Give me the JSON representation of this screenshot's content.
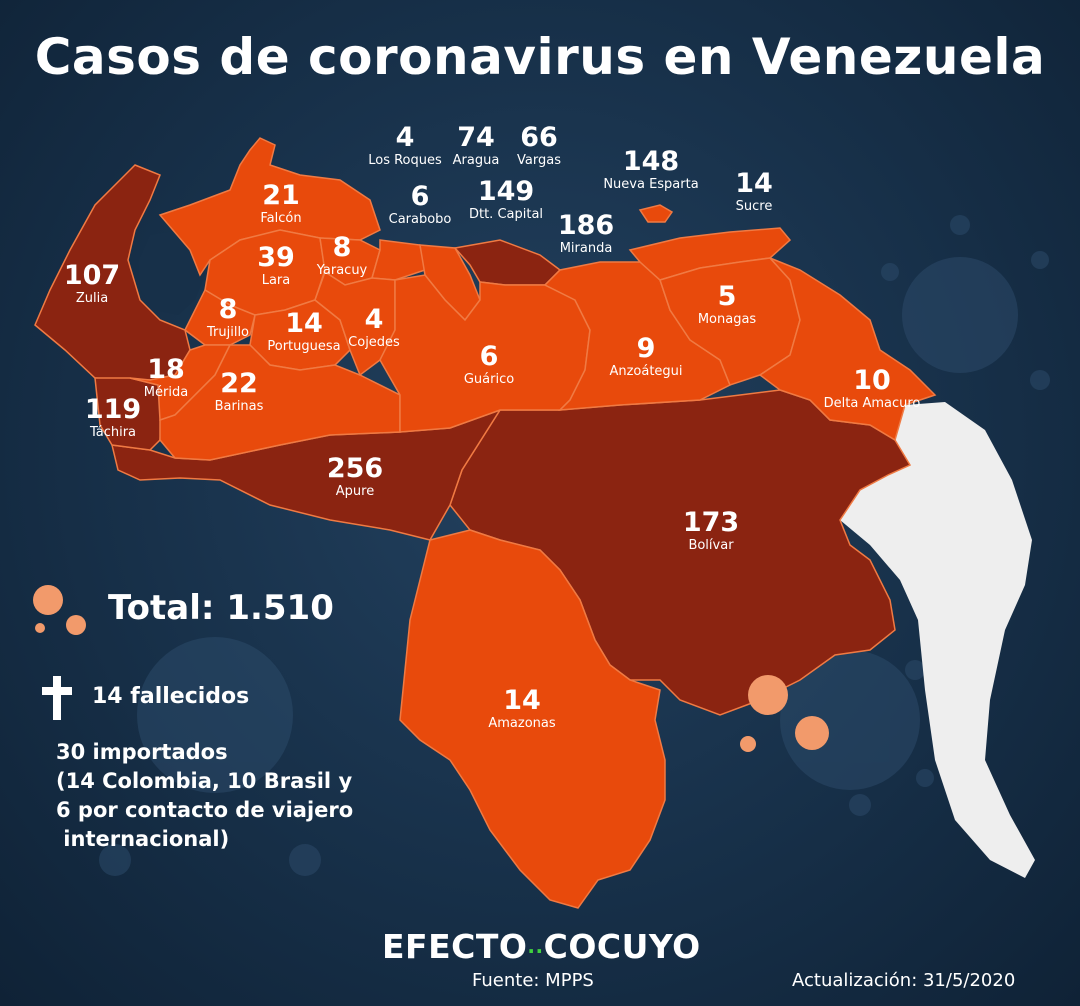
{
  "title": "Casos de coronavirus en Venezuela",
  "regions": [
    {
      "id": "zulia",
      "name": "Zulia",
      "cases": "107"
    },
    {
      "id": "falcon",
      "name": "Falcón",
      "cases": "21"
    },
    {
      "id": "lara",
      "name": "Lara",
      "cases": "39"
    },
    {
      "id": "yaracuy",
      "name": "Yaracuy",
      "cases": "8"
    },
    {
      "id": "trujillo",
      "name": "Trujillo",
      "cases": "8"
    },
    {
      "id": "portuguesa",
      "name": "Portuguesa",
      "cases": "14"
    },
    {
      "id": "cojedes",
      "name": "Cojedes",
      "cases": "4"
    },
    {
      "id": "merida",
      "name": "Mérida",
      "cases": "18"
    },
    {
      "id": "barinas",
      "name": "Barinas",
      "cases": "22"
    },
    {
      "id": "tachira",
      "name": "Táchira",
      "cases": "119"
    },
    {
      "id": "apure",
      "name": "Apure",
      "cases": "256"
    },
    {
      "id": "guarico",
      "name": "Guárico",
      "cases": "6"
    },
    {
      "id": "anzoategui",
      "name": "Anzoátegui",
      "cases": "9"
    },
    {
      "id": "monagas",
      "name": "Monagas",
      "cases": "5"
    },
    {
      "id": "delta_amacuro",
      "name": "Delta Amacuro",
      "cases": "10"
    },
    {
      "id": "bolivar",
      "name": "Bolívar",
      "cases": "173"
    },
    {
      "id": "amazonas",
      "name": "Amazonas",
      "cases": "14"
    },
    {
      "id": "los_roques",
      "name": "Los Roques",
      "cases": "4"
    },
    {
      "id": "aragua",
      "name": "Aragua",
      "cases": "74"
    },
    {
      "id": "vargas",
      "name": "Vargas",
      "cases": "66"
    },
    {
      "id": "carabobo",
      "name": "Carabobo",
      "cases": "6"
    },
    {
      "id": "dtt_capital",
      "name": "Dtt. Capital",
      "cases": "149"
    },
    {
      "id": "miranda",
      "name": "Miranda",
      "cases": "186"
    },
    {
      "id": "nueva_esparta",
      "name": "Nueva Esparta",
      "cases": "148"
    },
    {
      "id": "sucre",
      "name": "Sucre",
      "cases": "14"
    }
  ],
  "total": "Total: 1.510",
  "deaths": "14 fallecidos",
  "imported_lines": [
    "30 importados",
    "(14 Colombia, 10 Brasil y",
    "6 por contacto de viajero",
    " internacional)"
  ],
  "brand": {
    "left": "EFECTO",
    "right": "COCUYO"
  },
  "source": "Fuente: MPPS",
  "updated": "Actualización: 31/5/2020",
  "colors": {
    "background": "#173049",
    "light_fill": "#e84a0c",
    "dark_fill": "#8b2411",
    "border": "#f07a43",
    "neighbor": "#eeeeee",
    "virus": "#f29a6b"
  },
  "icons": [
    "virus-icon",
    "cross-icon"
  ]
}
